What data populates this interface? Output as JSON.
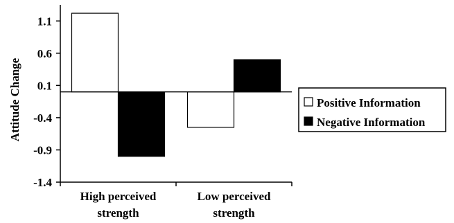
{
  "chart_data": {
    "type": "bar",
    "categories": [
      "High perceived strength",
      "Low perceived strength"
    ],
    "category_lines": [
      [
        "High perceived",
        "strength"
      ],
      [
        "Low perceived",
        "strength"
      ]
    ],
    "series": [
      {
        "name": "Positive Information",
        "values": [
          1.22,
          -0.55
        ],
        "color": "#ffffff"
      },
      {
        "name": "Negative Information",
        "values": [
          -1.0,
          0.5
        ],
        "color": "#000000"
      }
    ],
    "title": "",
    "xlabel": "",
    "ylabel": "Attitude  Change",
    "ylim": [
      -1.4,
      1.35
    ],
    "yticks": [
      1.1,
      0.6,
      0.1,
      -0.4,
      -0.9,
      -1.4
    ],
    "ytick_labels": [
      "1.1",
      "0.6",
      "0.1",
      "-0.4",
      "-0.9",
      "-1.4"
    ],
    "baseline": 0,
    "grid": false,
    "legend_position": "right"
  }
}
